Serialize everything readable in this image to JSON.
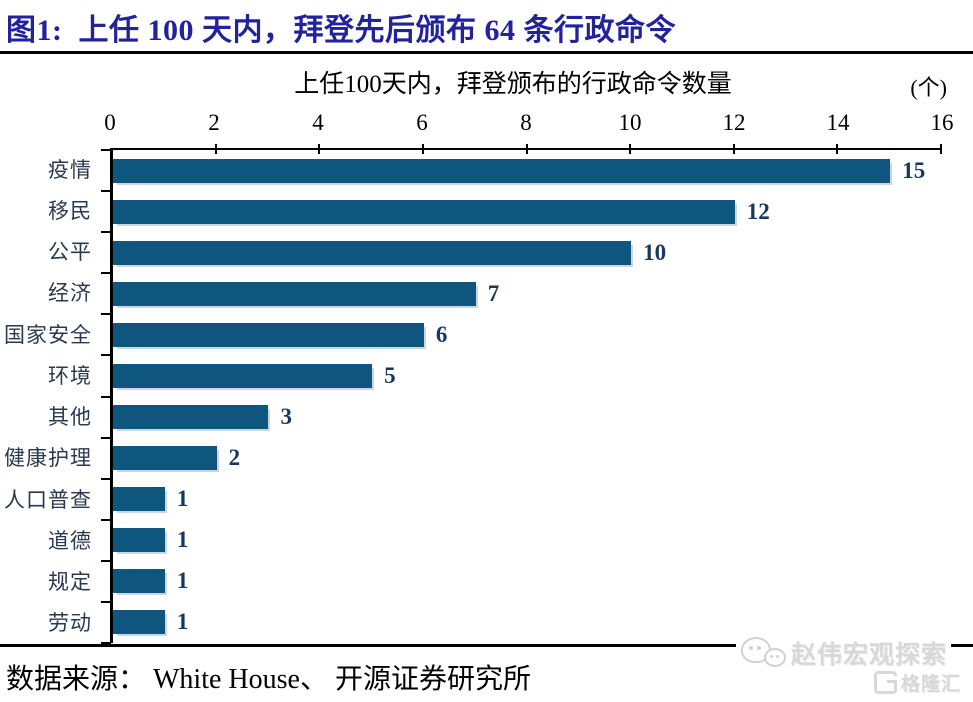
{
  "figure": {
    "title": "图1:  上任 100 天内，拜登先后颁布 64 条行政命令",
    "source": "数据来源： White House、 开源证券研究所"
  },
  "watermark": {
    "wechat_icon": "wechat-chat-bubbles-icon",
    "wechat_label": "赵伟宏观探索",
    "glh_icon": "g-square-logo-icon",
    "glh_label": "格隆汇"
  },
  "colors": {
    "bar": "#0F567E",
    "bar_shadow": "#C9D6E3",
    "value_label": "#17375E",
    "title": "#22229B",
    "category_label": "#2A3850",
    "axis": "#000000"
  },
  "chart_data": {
    "type": "bar",
    "orientation": "horizontal",
    "title": "上任100天内，拜登颁布的行政命令数量",
    "unit_label": "(个)",
    "categories": [
      "疫情",
      "移民",
      "公平",
      "经济",
      "国家安全",
      "环境",
      "其他",
      "健康护理",
      "人口普查",
      "道德",
      "规定",
      "劳动"
    ],
    "values": [
      15,
      12,
      10,
      7,
      6,
      5,
      3,
      2,
      1,
      1,
      1,
      1
    ],
    "xlim": [
      0,
      16
    ],
    "xticks": [
      0,
      2,
      4,
      6,
      8,
      10,
      12,
      14,
      16
    ],
    "value_axis_position": "top",
    "grid": false,
    "legend": false,
    "value_labels_shown": true
  }
}
